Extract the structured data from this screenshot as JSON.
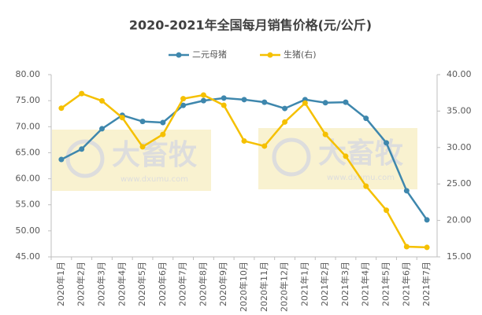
{
  "chart_data": {
    "type": "line",
    "title": "2020-2021年全国每月销售价格(元/公斤)",
    "categories": [
      "2020年1月",
      "2020年2月",
      "2020年3月",
      "2020年4月",
      "2020年5月",
      "2020年6月",
      "2020年7月",
      "2020年8月",
      "2020年9月",
      "2020年10月",
      "2020年11月",
      "2020年12月",
      "2021年1月",
      "2021年2月",
      "2021年3月",
      "2021年4月",
      "2021年5月",
      "2021年6月",
      "2021年7月"
    ],
    "series": [
      {
        "name": "二元母猪",
        "color": "#3e87ad",
        "values": [
          63.7,
          65.7,
          69.6,
          72.2,
          71.0,
          70.8,
          74.1,
          75.0,
          75.5,
          75.2,
          74.7,
          73.5,
          75.2,
          74.6,
          74.7,
          71.6,
          66.9,
          57.7,
          52.1
        ]
      },
      {
        "name": "生猪(右)",
        "color": "#f5c000",
        "axis": "y2",
        "values": [
          35.4,
          37.4,
          36.4,
          34.1,
          30.1,
          31.8,
          36.7,
          37.2,
          35.8,
          30.9,
          30.2,
          33.5,
          36.1,
          31.8,
          28.8,
          24.7,
          21.4,
          16.4,
          16.3
        ]
      }
    ],
    "ylim": [
      45,
      80
    ],
    "yticks": [
      {
        "value": 45,
        "label": "45.00"
      },
      {
        "value": 50,
        "label": "50.00"
      },
      {
        "value": 55,
        "label": "55.00"
      },
      {
        "value": 60,
        "label": "60.00"
      },
      {
        "value": 65,
        "label": "65.00"
      },
      {
        "value": 70,
        "label": "70.00"
      },
      {
        "value": 75,
        "label": "75.00"
      },
      {
        "value": 80,
        "label": "80.00"
      }
    ],
    "y2lim": [
      15,
      40
    ],
    "y2ticks": [
      {
        "value": 15,
        "label": "15.00"
      },
      {
        "value": 20,
        "label": "20.00"
      },
      {
        "value": 25,
        "label": "25.00"
      },
      {
        "value": 30,
        "label": "30.00"
      },
      {
        "value": 35,
        "label": "35.00"
      },
      {
        "value": 40,
        "label": "40.00"
      }
    ],
    "watermark": {
      "text": "大畜牧",
      "url": "www.dxumu.com"
    }
  }
}
